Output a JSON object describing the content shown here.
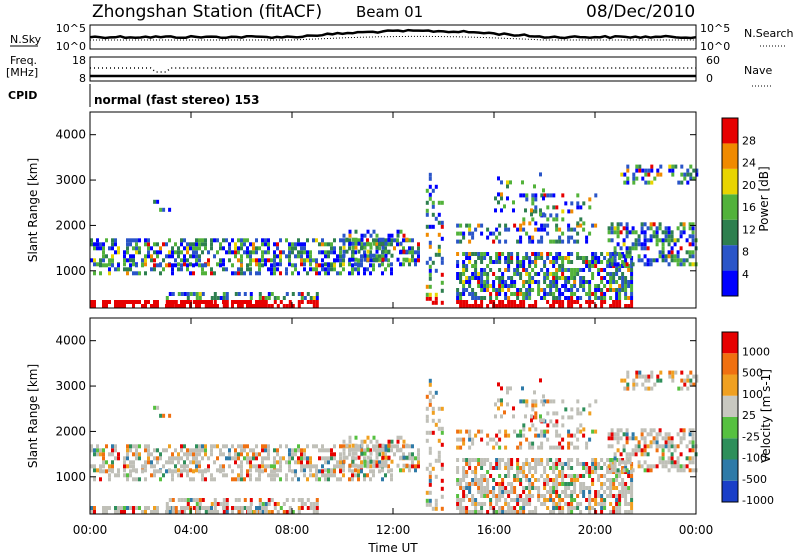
{
  "header": {
    "title": "Zhongshan Station (fitACF)",
    "beam": "Beam 01",
    "date": "08/Dec/2010"
  },
  "strips": {
    "nsky_label": "N.Sky",
    "nsearch_label": "N.Search",
    "nsky_ticks": [
      "10^5",
      "10^0"
    ],
    "nsearch_ticks": [
      "10^5",
      "10^0"
    ],
    "freq_label": "Freq.",
    "freq_unit": "[MHz]",
    "freq_ticks": [
      "18",
      "8"
    ],
    "nave_label": "Nave",
    "nave_ticks": [
      "60",
      "0"
    ],
    "cpid_label": "CPID",
    "cpid_value": "normal (fast stereo) 153"
  },
  "chart_data": [
    {
      "type": "heatmap",
      "parameter": "Power",
      "ylabel": "Slant Range [km]",
      "xlabel": "Time UT",
      "xlim_hours": [
        0,
        24
      ],
      "ylim_km": [
        180,
        4500
      ],
      "y_ticks": [
        "1000",
        "2000",
        "3000",
        "4000"
      ],
      "colorbar_label": "Power [dB]",
      "colorbar_ticks": [
        "28",
        "24",
        "20",
        "16",
        "12",
        "8",
        "4"
      ],
      "colorbar_colors": [
        "#0000ff",
        "#2a55c8",
        "#2e7f4f",
        "#52b23a",
        "#e8d400",
        "#f08a00",
        "#e60000"
      ]
    },
    {
      "type": "heatmap",
      "parameter": "Velocity",
      "ylabel": "Slant Range [km]",
      "xlabel": "Time UT",
      "xlim_hours": [
        0,
        24
      ],
      "ylim_km": [
        180,
        4500
      ],
      "y_ticks": [
        "1000",
        "2000",
        "3000",
        "4000"
      ],
      "colorbar_label": "Velocity [m s-1]",
      "colorbar_ticks": [
        "1000",
        "500",
        "100",
        "25",
        "-25",
        "-100",
        "-500",
        "-1000"
      ],
      "colorbar_colors": [
        "#1a3fc8",
        "#2e7aa8",
        "#2e8f5a",
        "#56c040",
        "#c8c8c0",
        "#f0a020",
        "#f07010",
        "#e60000"
      ],
      "ground_scatter_color": "#c0c0b8"
    }
  ],
  "x_ticks": [
    "00:00",
    "04:00",
    "08:00",
    "12:00",
    "16:00",
    "20:00",
    "00:00"
  ],
  "x_axis_label": "Time UT"
}
